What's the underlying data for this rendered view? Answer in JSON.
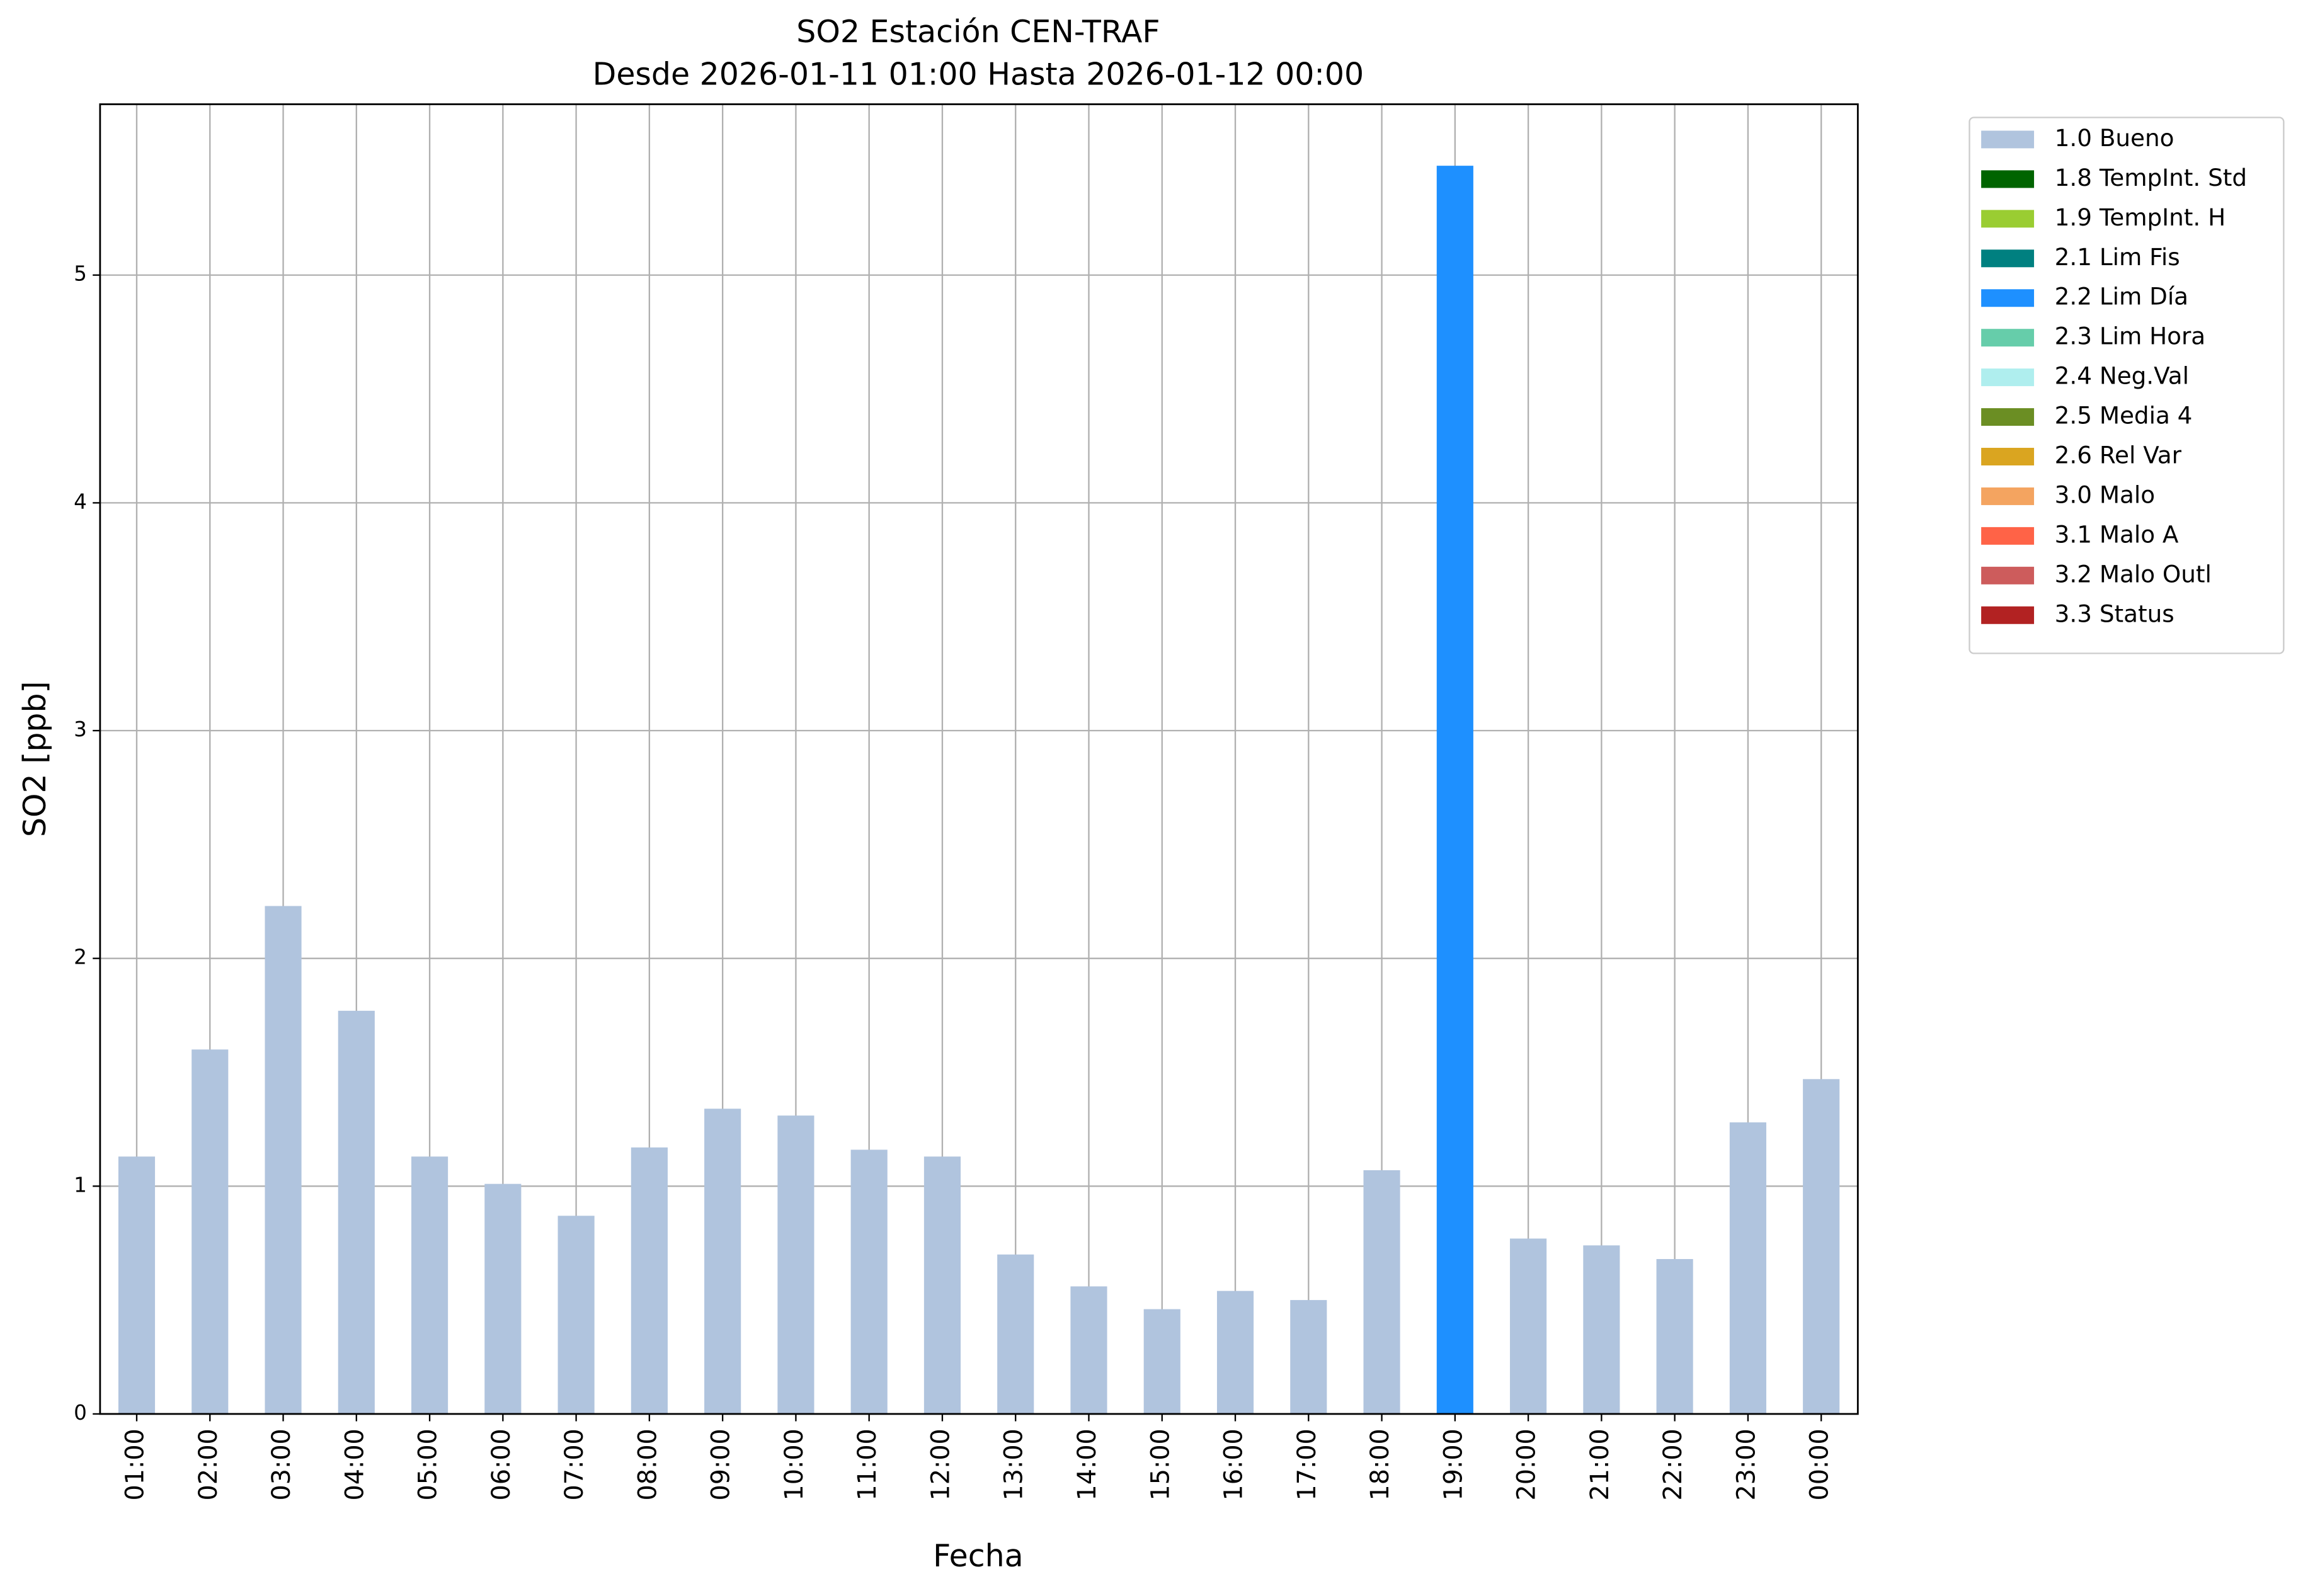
{
  "chart_data": {
    "type": "stacked_bar",
    "title": "SO2 Estación CEN-TRAF",
    "subtitle": "Desde 2026-01-11 01:00 Hasta 2026-01-12 00:00",
    "x_label": "Fecha",
    "y_label": "SO2 [ppb]",
    "categories": [
      "01:00",
      "02:00",
      "03:00",
      "04:00",
      "05:00",
      "06:00",
      "07:00",
      "08:00",
      "09:00",
      "10:00",
      "11:00",
      "12:00",
      "13:00",
      "14:00",
      "15:00",
      "16:00",
      "17:00",
      "18:00",
      "19:00",
      "20:00",
      "21:00",
      "22:00",
      "23:00",
      "00:00"
    ],
    "series": [
      {
        "name": "1.0 Bueno",
        "color": "#b0c4de",
        "values": [
          1.13,
          1.6,
          2.23,
          1.77,
          1.13,
          1.01,
          0.87,
          1.17,
          1.34,
          1.31,
          1.16,
          1.13,
          0.7,
          0.56,
          0.46,
          0.54,
          0.5,
          1.07,
          null,
          0.77,
          0.74,
          0.68,
          1.28,
          1.47
        ]
      },
      {
        "name": "1.8 TempInt. Std",
        "color": "#006400",
        "values": [
          null,
          null,
          null,
          null,
          null,
          null,
          null,
          null,
          null,
          null,
          null,
          null,
          null,
          null,
          null,
          null,
          null,
          null,
          null,
          null,
          null,
          null,
          null,
          null
        ]
      },
      {
        "name": "1.9 TempInt. H",
        "color": "#9acd32",
        "values": [
          null,
          null,
          null,
          null,
          null,
          null,
          null,
          null,
          null,
          null,
          null,
          null,
          null,
          null,
          null,
          null,
          null,
          null,
          null,
          null,
          null,
          null,
          null,
          null
        ]
      },
      {
        "name": "2.1 Lim Fis",
        "color": "#008080",
        "values": [
          null,
          null,
          null,
          null,
          null,
          null,
          null,
          null,
          null,
          null,
          null,
          null,
          null,
          null,
          null,
          null,
          null,
          null,
          null,
          null,
          null,
          null,
          null,
          null
        ]
      },
      {
        "name": "2.2 Lim Día",
        "color": "#1e90ff",
        "values": [
          null,
          null,
          null,
          null,
          null,
          null,
          null,
          null,
          null,
          null,
          null,
          null,
          null,
          null,
          null,
          null,
          null,
          null,
          5.48,
          null,
          null,
          null,
          null,
          null
        ]
      },
      {
        "name": "2.3 Lim Hora",
        "color": "#66cdaa",
        "values": [
          null,
          null,
          null,
          null,
          null,
          null,
          null,
          null,
          null,
          null,
          null,
          null,
          null,
          null,
          null,
          null,
          null,
          null,
          null,
          null,
          null,
          null,
          null,
          null
        ]
      },
      {
        "name": "2.4 Neg.Val",
        "color": "#afeeee",
        "values": [
          null,
          null,
          null,
          null,
          null,
          null,
          null,
          null,
          null,
          null,
          null,
          null,
          null,
          null,
          null,
          null,
          null,
          null,
          null,
          null,
          null,
          null,
          null,
          null
        ]
      },
      {
        "name": "2.5 Media 4",
        "color": "#6b8e23",
        "values": [
          null,
          null,
          null,
          null,
          null,
          null,
          null,
          null,
          null,
          null,
          null,
          null,
          null,
          null,
          null,
          null,
          null,
          null,
          null,
          null,
          null,
          null,
          null,
          null
        ]
      },
      {
        "name": "2.6 Rel Var",
        "color": "#daa520",
        "values": [
          null,
          null,
          null,
          null,
          null,
          null,
          null,
          null,
          null,
          null,
          null,
          null,
          null,
          null,
          null,
          null,
          null,
          null,
          null,
          null,
          null,
          null,
          null,
          null
        ]
      },
      {
        "name": "3.0 Malo",
        "color": "#f4a460",
        "values": [
          null,
          null,
          null,
          null,
          null,
          null,
          null,
          null,
          null,
          null,
          null,
          null,
          null,
          null,
          null,
          null,
          null,
          null,
          null,
          null,
          null,
          null,
          null,
          null
        ]
      },
      {
        "name": "3.1 Malo A",
        "color": "#ff6347",
        "values": [
          null,
          null,
          null,
          null,
          null,
          null,
          null,
          null,
          null,
          null,
          null,
          null,
          null,
          null,
          null,
          null,
          null,
          null,
          null,
          null,
          null,
          null,
          null,
          null
        ]
      },
      {
        "name": "3.2 Malo Outl",
        "color": "#cd5c5c",
        "values": [
          null,
          null,
          null,
          null,
          null,
          null,
          null,
          null,
          null,
          null,
          null,
          null,
          null,
          null,
          null,
          null,
          null,
          null,
          null,
          null,
          null,
          null,
          null,
          null
        ]
      },
      {
        "name": "3.3 Status",
        "color": "#b22222",
        "values": [
          null,
          null,
          null,
          null,
          null,
          null,
          null,
          null,
          null,
          null,
          null,
          null,
          null,
          null,
          null,
          null,
          null,
          null,
          null,
          null,
          null,
          null,
          null,
          null
        ]
      }
    ],
    "ylim": [
      0,
      5.75
    ],
    "yticks": [
      0,
      1,
      2,
      3,
      4,
      5
    ],
    "grid": true,
    "legend": "outside-right"
  }
}
